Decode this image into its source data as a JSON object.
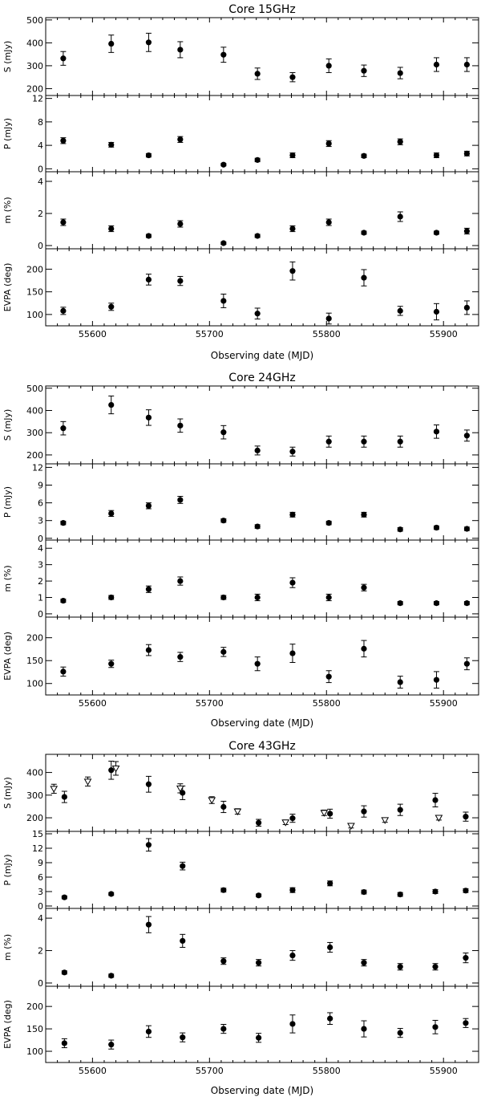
{
  "chart_data": [
    {
      "type": "scatter",
      "title": "Core 15GHz",
      "xlabel": "Observing date (MJD)",
      "xlim": [
        55560,
        55930
      ],
      "xticks": [
        55600,
        55700,
        55800,
        55900
      ],
      "panels": [
        {
          "ylabel": "S (mJy)",
          "ylim": [
            170,
            510
          ],
          "yticks": [
            200,
            300,
            400,
            500
          ],
          "series": [
            {
              "marker": "filled-circle",
              "x": [
                55575,
                55616,
                55648,
                55675,
                55712,
                55741,
                55771,
                55802,
                55832,
                55863,
                55894,
                55920
              ],
              "y": [
                332,
                396,
                402,
                370,
                348,
                265,
                250,
                300,
                278,
                268,
                305,
                305
              ],
              "err": [
                30,
                38,
                40,
                35,
                33,
                25,
                20,
                30,
                25,
                25,
                30,
                30
              ]
            }
          ]
        },
        {
          "ylabel": "P (mJy)",
          "ylim": [
            -0.5,
            12.5
          ],
          "yticks": [
            0,
            4,
            8,
            12
          ],
          "series": [
            {
              "marker": "filled-circle",
              "x": [
                55575,
                55616,
                55648,
                55675,
                55712,
                55741,
                55771,
                55802,
                55832,
                55863,
                55894,
                55920
              ],
              "y": [
                4.8,
                4.1,
                2.3,
                5.0,
                0.7,
                1.5,
                2.3,
                4.3,
                2.2,
                4.6,
                2.3,
                2.6
              ],
              "err": [
                0.5,
                0.4,
                0.3,
                0.5,
                0.2,
                0.3,
                0.4,
                0.5,
                0.3,
                0.5,
                0.4,
                0.4
              ]
            }
          ]
        },
        {
          "ylabel": "m (%)",
          "ylim": [
            -0.2,
            4.6
          ],
          "yticks": [
            0,
            2,
            4
          ],
          "series": [
            {
              "marker": "filled-circle",
              "x": [
                55575,
                55616,
                55648,
                55675,
                55712,
                55741,
                55771,
                55802,
                55832,
                55863,
                55894,
                55920
              ],
              "y": [
                1.45,
                1.05,
                0.6,
                1.35,
                0.15,
                0.6,
                1.05,
                1.45,
                0.8,
                1.8,
                0.8,
                0.9
              ],
              "err": [
                0.2,
                0.18,
                0.1,
                0.2,
                0.08,
                0.1,
                0.18,
                0.2,
                0.1,
                0.3,
                0.1,
                0.18
              ]
            }
          ]
        },
        {
          "ylabel": "EVPA (deg)",
          "ylim": [
            75,
            245
          ],
          "yticks": [
            100,
            150,
            200
          ],
          "series": [
            {
              "marker": "filled-circle",
              "x": [
                55575,
                55616,
                55648,
                55675,
                55712,
                55741,
                55771,
                55802,
                55832,
                55863,
                55894,
                55920
              ],
              "y": [
                108,
                117,
                177,
                174,
                130,
                102,
                196,
                91,
                181,
                108,
                106,
                115
              ],
              "err": [
                8,
                8,
                12,
                10,
                15,
                12,
                20,
                12,
                18,
                10,
                18,
                15
              ]
            }
          ]
        }
      ]
    },
    {
      "type": "scatter",
      "title": "Core 24GHz",
      "xlabel": "Observing date (MJD)",
      "xlim": [
        55560,
        55930
      ],
      "xticks": [
        55600,
        55700,
        55800,
        55900
      ],
      "panels": [
        {
          "ylabel": "S (mJy)",
          "ylim": [
            160,
            510
          ],
          "yticks": [
            200,
            300,
            400,
            500
          ],
          "series": [
            {
              "marker": "filled-circle",
              "x": [
                55575,
                55616,
                55648,
                55675,
                55712,
                55741,
                55771,
                55802,
                55832,
                55863,
                55894,
                55920
              ],
              "y": [
                320,
                425,
                368,
                332,
                302,
                220,
                215,
                260,
                260,
                260,
                305,
                287
              ],
              "err": [
                30,
                40,
                35,
                30,
                30,
                20,
                20,
                25,
                25,
                25,
                30,
                25
              ]
            }
          ]
        },
        {
          "ylabel": "P (mJy)",
          "ylim": [
            -0.3,
            12.6
          ],
          "yticks": [
            0,
            3,
            6,
            9,
            12
          ],
          "series": [
            {
              "marker": "filled-circle",
              "x": [
                55575,
                55616,
                55648,
                55675,
                55712,
                55741,
                55771,
                55802,
                55832,
                55863,
                55894,
                55920
              ],
              "y": [
                2.6,
                4.2,
                5.5,
                6.5,
                3.0,
                2.0,
                4.0,
                2.6,
                4.0,
                1.5,
                1.8,
                1.6
              ],
              "err": [
                0.3,
                0.5,
                0.5,
                0.6,
                0.3,
                0.3,
                0.4,
                0.3,
                0.4,
                0.3,
                0.3,
                0.3
              ]
            }
          ]
        },
        {
          "ylabel": "m (%)",
          "ylim": [
            -0.2,
            4.5
          ],
          "yticks": [
            0,
            1,
            2,
            3,
            4
          ],
          "series": [
            {
              "marker": "filled-circle",
              "x": [
                55575,
                55616,
                55648,
                55675,
                55712,
                55741,
                55771,
                55802,
                55832,
                55863,
                55894,
                55920
              ],
              "y": [
                0.8,
                1.0,
                1.5,
                2.0,
                1.0,
                1.0,
                1.9,
                1.0,
                1.6,
                0.65,
                0.65,
                0.65
              ],
              "err": [
                0.1,
                0.12,
                0.2,
                0.25,
                0.12,
                0.2,
                0.3,
                0.2,
                0.2,
                0.1,
                0.1,
                0.1
              ]
            }
          ]
        },
        {
          "ylabel": "EVPA (deg)",
          "ylim": [
            75,
            245
          ],
          "yticks": [
            100,
            150,
            200
          ],
          "series": [
            {
              "marker": "filled-circle",
              "x": [
                55575,
                55616,
                55648,
                55675,
                55712,
                55741,
                55771,
                55802,
                55832,
                55863,
                55894,
                55920
              ],
              "y": [
                126,
                143,
                173,
                158,
                169,
                143,
                166,
                115,
                176,
                103,
                108,
                143
              ],
              "err": [
                10,
                8,
                12,
                10,
                10,
                15,
                20,
                13,
                18,
                13,
                18,
                13
              ]
            }
          ]
        }
      ]
    },
    {
      "type": "scatter",
      "title": "Core 43GHz",
      "xlabel": "Observing date (MJD)",
      "xlim": [
        55560,
        55930
      ],
      "xticks": [
        55600,
        55700,
        55800,
        55900
      ],
      "panels": [
        {
          "ylabel": "S (mJy)",
          "ylim": [
            140,
            480
          ],
          "yticks": [
            200,
            300,
            400
          ],
          "series": [
            {
              "marker": "filled-circle",
              "x": [
                55576,
                55616,
                55648,
                55677,
                55712,
                55742,
                55771,
                55803,
                55832,
                55863,
                55893,
                55919
              ],
              "y": [
                292,
                410,
                348,
                310,
                248,
                178,
                198,
                218,
                228,
                235,
                278,
                205
              ],
              "err": [
                25,
                40,
                35,
                30,
                25,
                15,
                18,
                20,
                25,
                25,
                30,
                20
              ]
            },
            {
              "marker": "open-triangle-down",
              "x": [
                55567,
                55596,
                55620,
                55675,
                55702,
                55724,
                55765,
                55798,
                55821,
                55850,
                55896
              ],
              "y": [
                328,
                360,
                418,
                330,
                278,
                228,
                180,
                222,
                165,
                190,
                200
              ],
              "err": [
                20,
                20,
                30,
                20,
                15,
                12,
                10,
                12,
                10,
                10,
                10
              ]
            }
          ]
        },
        {
          "ylabel": "P (mJy)",
          "ylim": [
            -0.5,
            15.5
          ],
          "yticks": [
            0,
            3,
            6,
            9,
            12,
            15
          ],
          "series": [
            {
              "marker": "filled-circle",
              "x": [
                55576,
                55616,
                55648,
                55677,
                55712,
                55742,
                55771,
                55803,
                55832,
                55863,
                55893,
                55919
              ],
              "y": [
                1.8,
                2.5,
                12.7,
                8.3,
                3.3,
                2.2,
                3.3,
                4.7,
                2.9,
                2.4,
                3.0,
                3.2
              ],
              "err": [
                0.3,
                0.3,
                1.3,
                0.8,
                0.4,
                0.3,
                0.5,
                0.5,
                0.4,
                0.4,
                0.4,
                0.4
              ]
            }
          ]
        },
        {
          "ylabel": "m (%)",
          "ylim": [
            -0.2,
            4.6
          ],
          "yticks": [
            0,
            2,
            4
          ],
          "series": [
            {
              "marker": "filled-circle",
              "x": [
                55576,
                55616,
                55648,
                55677,
                55712,
                55742,
                55771,
                55803,
                55832,
                55863,
                55893,
                55919
              ],
              "y": [
                0.65,
                0.45,
                3.6,
                2.6,
                1.35,
                1.25,
                1.7,
                2.2,
                1.25,
                1.0,
                1.0,
                1.55
              ],
              "err": [
                0.1,
                0.1,
                0.5,
                0.4,
                0.2,
                0.2,
                0.3,
                0.3,
                0.2,
                0.2,
                0.2,
                0.3
              ]
            }
          ]
        },
        {
          "ylabel": "EVPA (deg)",
          "ylim": [
            75,
            245
          ],
          "yticks": [
            100,
            150,
            200
          ],
          "series": [
            {
              "marker": "filled-circle",
              "x": [
                55576,
                55616,
                55648,
                55677,
                55712,
                55742,
                55771,
                55803,
                55832,
                55863,
                55893,
                55919
              ],
              "y": [
                118,
                115,
                144,
                131,
                150,
                130,
                161,
                173,
                150,
                141,
                154,
                163
              ],
              "err": [
                10,
                10,
                13,
                10,
                10,
                10,
                20,
                13,
                18,
                10,
                15,
                10
              ]
            }
          ]
        }
      ]
    }
  ]
}
